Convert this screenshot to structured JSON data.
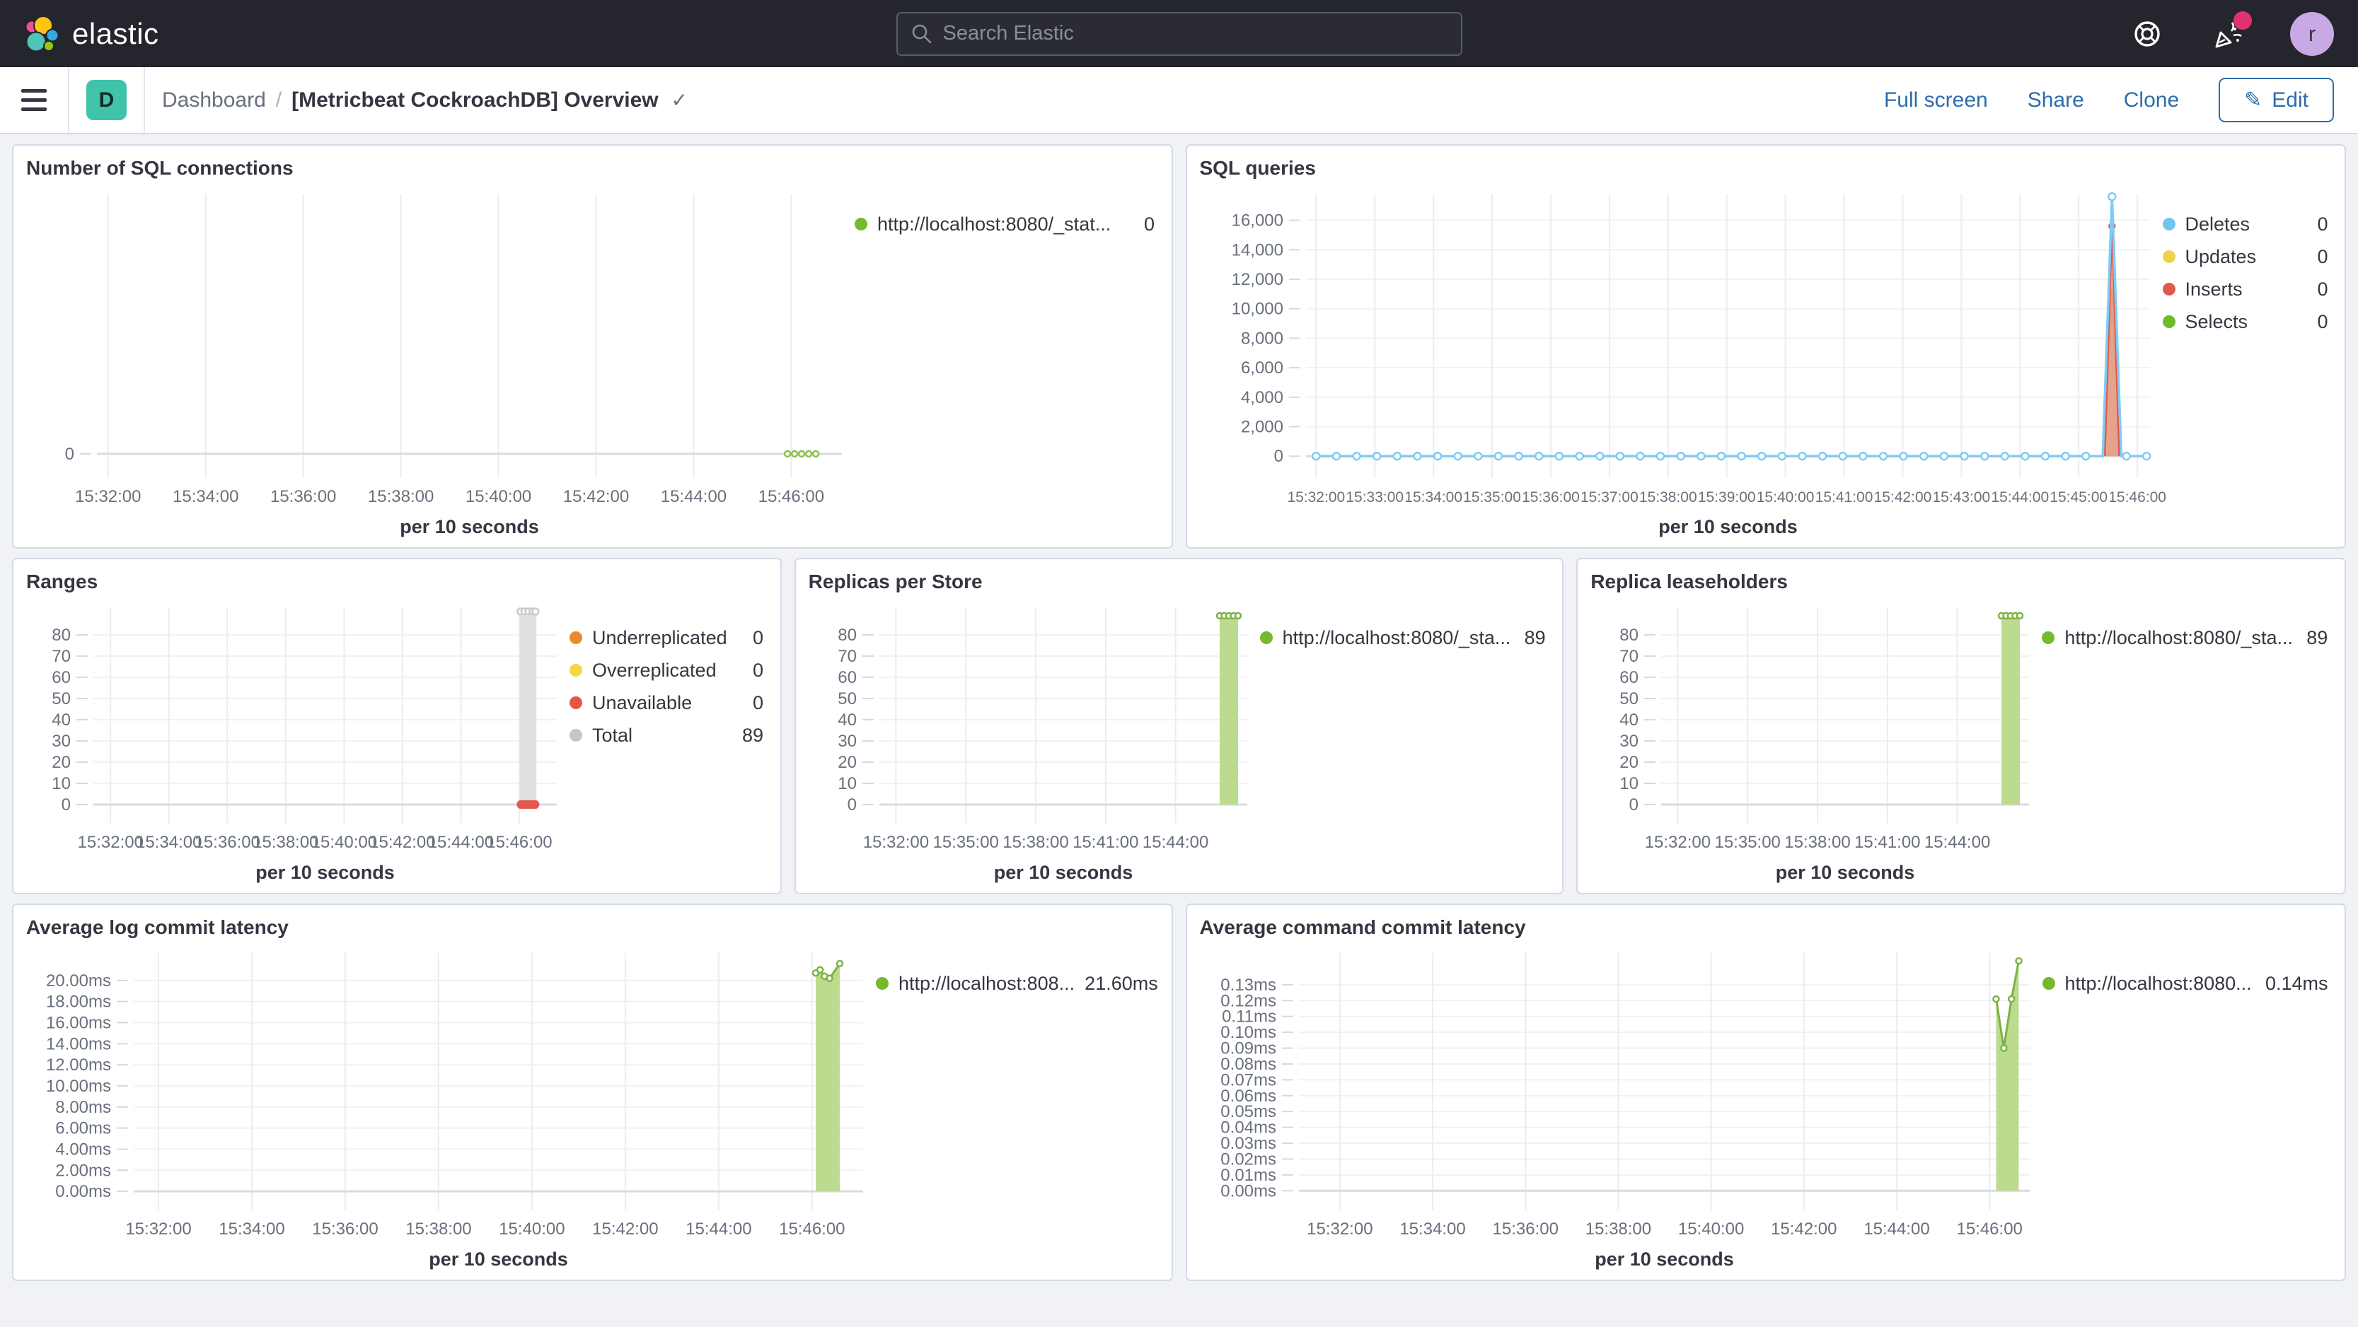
{
  "header": {
    "brand": "elastic",
    "search_placeholder": "Search Elastic",
    "avatar_initial": "r"
  },
  "toolbar": {
    "space_badge": "D",
    "breadcrumb_root": "Dashboard",
    "breadcrumb_sep": "/",
    "title": "[Metricbeat CockroachDB] Overview",
    "title_check": "✓",
    "actions": {
      "full_screen": "Full screen",
      "share": "Share",
      "clone": "Clone",
      "edit": "Edit",
      "edit_icon": "✎"
    }
  },
  "panels": [
    {
      "title": "Number of SQL connections",
      "legend": [
        {
          "label": "http://localhost:8080/_stat...",
          "value": "0",
          "color": "#77b92d"
        }
      ],
      "chart_data": {
        "type": "line",
        "x_axis_title": "per 10 seconds",
        "x_ticks": [
          "15:32:00",
          "15:34:00",
          "15:36:00",
          "15:38:00",
          "15:40:00",
          "15:42:00",
          "15:44:00",
          "15:46:00"
        ],
        "y_ticks": [
          {
            "v": 0,
            "label": "0"
          }
        ],
        "ylim": [
          -0.6,
          10
        ],
        "h_grid": false,
        "layout": {
          "margin_left": 100,
          "x_first": 0.015,
          "x_step": 0.131,
          "x_font": 24
        },
        "series": [
          {
            "name": "http://localhost:8080/_stat...",
            "stroke": "#8cbf4d",
            "width": 3,
            "points": [
              [
                0.927,
                0
              ],
              [
                0.965,
                0
              ]
            ],
            "marker_step": 0.0095,
            "marker_r": 4
          }
        ]
      }
    },
    {
      "title": "SQL queries",
      "legend": [
        {
          "label": "Deletes",
          "value": "0",
          "color": "#73c5f0"
        },
        {
          "label": "Updates",
          "value": "0",
          "color": "#efd24b"
        },
        {
          "label": "Inserts",
          "value": "0",
          "color": "#df5a4b"
        },
        {
          "label": "Selects",
          "value": "0",
          "color": "#6fbb2a"
        }
      ],
      "chart_data": {
        "type": "line",
        "x_axis_title": "per 10 seconds",
        "x_ticks": [
          "15:32:00",
          "15:33:00",
          "15:34:00",
          "15:35:00",
          "15:36:00",
          "15:37:00",
          "15:38:00",
          "15:39:00",
          "15:40:00",
          "15:41:00",
          "15:42:00",
          "15:43:00",
          "15:44:00",
          "15:45:00",
          "15:46:00"
        ],
        "y_ticks": [
          {
            "v": 0,
            "label": "0"
          },
          {
            "v": 2000,
            "label": "2,000"
          },
          {
            "v": 4000,
            "label": "4,000"
          },
          {
            "v": 6000,
            "label": "6,000"
          },
          {
            "v": 8000,
            "label": "8,000"
          },
          {
            "v": 10000,
            "label": "10,000"
          },
          {
            "v": 12000,
            "label": "12,000"
          },
          {
            "v": 14000,
            "label": "14,000"
          },
          {
            "v": 16000,
            "label": "16,000"
          }
        ],
        "ylim": [
          -900,
          17800
        ],
        "h_grid": true,
        "layout": {
          "margin_left": 150,
          "x_first": 0.012,
          "x_step": 0.0695,
          "x_font": 21
        },
        "series": [
          {
            "name": "Selects",
            "stroke": "#7cb342",
            "width": 3,
            "fill": "#a6d06f",
            "fill_opacity": 0.9,
            "points": [
              [
                0.945,
                0
              ],
              [
                0.955,
                11500
              ],
              [
                0.965,
                0
              ]
            ],
            "markers": [
              [
                0.955,
                11500
              ]
            ],
            "marker_r": 5
          },
          {
            "name": "Inserts",
            "stroke": "#e0594c",
            "width": 2.5,
            "fill": "#ee9a8d",
            "fill_opacity": 0.85,
            "points": [
              [
                0.9465,
                0
              ],
              [
                0.955,
                15600
              ],
              [
                0.9635,
                0
              ]
            ],
            "markers": [
              [
                0.955,
                15600
              ]
            ],
            "marker_r": 4
          },
          {
            "name": "Deletes",
            "stroke": "#7fcbf7",
            "width": 3.5,
            "points": [
              [
                0.012,
                0
              ],
              [
                0.944,
                0
              ],
              [
                0.955,
                17600
              ],
              [
                0.966,
                0
              ],
              [
                0.999,
                0
              ]
            ],
            "marker_step": 0.024,
            "skip_steep_markers": true,
            "markers": [
              [
                0.955,
                17600
              ]
            ],
            "marker_r": 5
          }
        ]
      }
    },
    {
      "title": "Ranges",
      "legend": [
        {
          "label": "Underreplicated",
          "value": "0",
          "color": "#ea8a2d"
        },
        {
          "label": "Overreplicated",
          "value": "0",
          "color": "#f0d943"
        },
        {
          "label": "Unavailable",
          "value": "0",
          "color": "#e25749"
        },
        {
          "label": "Total",
          "value": "89",
          "color": "#c6c6c6"
        }
      ],
      "chart_data": {
        "type": "bar",
        "x_axis_title": "per 10 seconds",
        "x_ticks": [
          "15:32:00",
          "15:34:00",
          "15:36:00",
          "15:38:00",
          "15:40:00",
          "15:42:00",
          "15:44:00",
          "15:46:00"
        ],
        "y_ticks": [
          {
            "v": 0,
            "label": "0"
          },
          {
            "v": 10,
            "label": "10"
          },
          {
            "v": 20,
            "label": "20"
          },
          {
            "v": 30,
            "label": "30"
          },
          {
            "v": 40,
            "label": "40"
          },
          {
            "v": 50,
            "label": "50"
          },
          {
            "v": 60,
            "label": "60"
          },
          {
            "v": 70,
            "label": "70"
          },
          {
            "v": 80,
            "label": "80"
          }
        ],
        "ylim": [
          -5,
          93
        ],
        "h_grid": true,
        "layout": {
          "margin_left": 95,
          "x_first": 0.037,
          "x_step": 0.126,
          "x_font": 24
        },
        "series": [
          {
            "name": "Total",
            "fill": "#dbdbdb",
            "fill_opacity": 0.9,
            "points": [
              [
                0.92,
                0
              ],
              [
                0.92,
                89
              ],
              [
                0.956,
                89
              ],
              [
                0.956,
                0
              ]
            ],
            "markers": [
              [
                0.922,
                91
              ],
              [
                0.9305,
                91
              ],
              [
                0.939,
                91
              ],
              [
                0.9475,
                91
              ],
              [
                0.954,
                91
              ]
            ],
            "marker_r": 4.5,
            "marker_stroke": "#c9c9c9"
          },
          {
            "name": "Unavailable",
            "markers": [
              [
                0.923,
                0
              ],
              [
                0.9305,
                0
              ],
              [
                0.938,
                0
              ],
              [
                0.9455,
                0
              ],
              [
                0.953,
                0
              ]
            ],
            "marker_r": 5,
            "marker_fill": "#e0594c",
            "marker_stroke": "#e0594c"
          }
        ]
      }
    },
    {
      "title": "Replicas per Store",
      "legend": [
        {
          "label": "http://localhost:8080/_sta...",
          "value": "89",
          "color": "#77b92d"
        }
      ],
      "chart_data": {
        "type": "bar",
        "x_axis_title": "per 10 seconds",
        "x_ticks": [
          "15:32:00",
          "15:35:00",
          "15:38:00",
          "15:41:00",
          "15:44:00"
        ],
        "y_ticks": [
          {
            "v": 0,
            "label": "0"
          },
          {
            "v": 10,
            "label": "10"
          },
          {
            "v": 20,
            "label": "20"
          },
          {
            "v": 30,
            "label": "30"
          },
          {
            "v": 40,
            "label": "40"
          },
          {
            "v": 50,
            "label": "50"
          },
          {
            "v": 60,
            "label": "60"
          },
          {
            "v": 70,
            "label": "70"
          },
          {
            "v": 80,
            "label": "80"
          }
        ],
        "ylim": [
          -5,
          93
        ],
        "h_grid": true,
        "layout": {
          "margin_left": 100,
          "x_first": 0.045,
          "x_step": 0.19,
          "x_font": 24
        },
        "series": [
          {
            "name": "http://localhost:8080/_sta...",
            "fill": "#bcdb8f",
            "fill_opacity": 1,
            "points": [
              [
                0.925,
                0
              ],
              [
                0.925,
                89
              ],
              [
                0.975,
                89
              ],
              [
                0.975,
                0
              ]
            ]
          },
          {
            "stroke": "#7cb342",
            "width": 3,
            "points": [
              [
                0.925,
                89
              ],
              [
                0.975,
                89
              ]
            ],
            "marker_step": 0.0125,
            "marker_r": 4
          }
        ]
      }
    },
    {
      "title": "Replica leaseholders",
      "legend": [
        {
          "label": "http://localhost:8080/_sta...",
          "value": "89",
          "color": "#77b92d"
        }
      ],
      "chart_data": {
        "type": "bar",
        "x_axis_title": "per 10 seconds",
        "x_ticks": [
          "15:32:00",
          "15:35:00",
          "15:38:00",
          "15:41:00",
          "15:44:00"
        ],
        "y_ticks": [
          {
            "v": 0,
            "label": "0"
          },
          {
            "v": 10,
            "label": "10"
          },
          {
            "v": 20,
            "label": "20"
          },
          {
            "v": 30,
            "label": "30"
          },
          {
            "v": 40,
            "label": "40"
          },
          {
            "v": 50,
            "label": "50"
          },
          {
            "v": 60,
            "label": "60"
          },
          {
            "v": 70,
            "label": "70"
          },
          {
            "v": 80,
            "label": "80"
          }
        ],
        "ylim": [
          -5,
          93
        ],
        "h_grid": true,
        "layout": {
          "margin_left": 100,
          "x_first": 0.045,
          "x_step": 0.19,
          "x_font": 24
        },
        "series": [
          {
            "name": "http://localhost:8080/_sta...",
            "fill": "#bcdb8f",
            "fill_opacity": 1,
            "points": [
              [
                0.925,
                0
              ],
              [
                0.925,
                89
              ],
              [
                0.975,
                89
              ],
              [
                0.975,
                0
              ]
            ]
          },
          {
            "stroke": "#7cb342",
            "width": 3,
            "points": [
              [
                0.925,
                89
              ],
              [
                0.975,
                89
              ]
            ],
            "marker_step": 0.0125,
            "marker_r": 4
          }
        ]
      }
    },
    {
      "title": "Average log commit latency",
      "legend": [
        {
          "label": "http://localhost:808...",
          "value": "21.60ms",
          "color": "#77b92d"
        }
      ],
      "chart_data": {
        "type": "area",
        "x_axis_title": "per 10 seconds",
        "x_ticks": [
          "15:32:00",
          "15:34:00",
          "15:36:00",
          "15:38:00",
          "15:40:00",
          "15:42:00",
          "15:44:00",
          "15:46:00"
        ],
        "y_ticks": [
          {
            "v": 0,
            "label": "0.00ms"
          },
          {
            "v": 2,
            "label": "2.00ms"
          },
          {
            "v": 4,
            "label": "4.00ms"
          },
          {
            "v": 6,
            "label": "6.00ms"
          },
          {
            "v": 8,
            "label": "8.00ms"
          },
          {
            "v": 10,
            "label": "10.00ms"
          },
          {
            "v": 12,
            "label": "12.00ms"
          },
          {
            "v": 14,
            "label": "14.00ms"
          },
          {
            "v": 16,
            "label": "16.00ms"
          },
          {
            "v": 18,
            "label": "18.00ms"
          },
          {
            "v": 20,
            "label": "20.00ms"
          }
        ],
        "ylim": [
          -1,
          22.6
        ],
        "h_grid": true,
        "layout": {
          "margin_left": 152,
          "x_first": 0.034,
          "x_step": 0.128,
          "x_font": 24
        },
        "series": [
          {
            "name": "http://localhost:808...",
            "fill": "#bcdb8f",
            "fill_opacity": 1,
            "points": [
              [
                0.935,
                0
              ],
              [
                0.935,
                20.7
              ],
              [
                0.941,
                21.0
              ],
              [
                0.947,
                20.4
              ],
              [
                0.954,
                20.2
              ],
              [
                0.968,
                21.6
              ],
              [
                0.968,
                0
              ]
            ]
          },
          {
            "stroke": "#7cb342",
            "width": 3,
            "points": [
              [
                0.935,
                20.7
              ],
              [
                0.941,
                21.0
              ],
              [
                0.947,
                20.4
              ],
              [
                0.954,
                20.2
              ],
              [
                0.968,
                21.6
              ]
            ],
            "markers_at_points": true,
            "marker_r": 4
          }
        ]
      }
    },
    {
      "title": "Average command commit latency",
      "legend": [
        {
          "label": "http://localhost:8080...",
          "value": "0.14ms",
          "color": "#77b92d"
        }
      ],
      "chart_data": {
        "type": "area",
        "x_axis_title": "per 10 seconds",
        "x_ticks": [
          "15:32:00",
          "15:34:00",
          "15:36:00",
          "15:38:00",
          "15:40:00",
          "15:42:00",
          "15:44:00",
          "15:46:00"
        ],
        "y_ticks": [
          {
            "v": 0,
            "label": "0.00ms"
          },
          {
            "v": 0.01,
            "label": "0.01ms"
          },
          {
            "v": 0.02,
            "label": "0.02ms"
          },
          {
            "v": 0.03,
            "label": "0.03ms"
          },
          {
            "v": 0.04,
            "label": "0.04ms"
          },
          {
            "v": 0.05,
            "label": "0.05ms"
          },
          {
            "v": 0.06,
            "label": "0.06ms"
          },
          {
            "v": 0.07,
            "label": "0.07ms"
          },
          {
            "v": 0.08,
            "label": "0.08ms"
          },
          {
            "v": 0.09,
            "label": "0.09ms"
          },
          {
            "v": 0.1,
            "label": "0.10ms"
          },
          {
            "v": 0.11,
            "label": "0.11ms"
          },
          {
            "v": 0.12,
            "label": "0.12ms"
          },
          {
            "v": 0.13,
            "label": "0.13ms"
          }
        ],
        "ylim": [
          -0.007,
          0.15
        ],
        "h_grid": true,
        "layout": {
          "margin_left": 140,
          "x_first": 0.056,
          "x_step": 0.127,
          "x_font": 24
        },
        "series": [
          {
            "name": "http://localhost:8080...",
            "fill": "#bcdb8f",
            "fill_opacity": 1,
            "points": [
              [
                0.954,
                0
              ],
              [
                0.954,
                0.121
              ],
              [
                0.9645,
                0.09
              ],
              [
                0.975,
                0.121
              ],
              [
                0.985,
                0.145
              ],
              [
                0.985,
                0
              ]
            ]
          },
          {
            "stroke": "#7cb342",
            "width": 3,
            "points": [
              [
                0.954,
                0.121
              ],
              [
                0.9645,
                0.09
              ],
              [
                0.975,
                0.121
              ],
              [
                0.985,
                0.145
              ]
            ],
            "markers_at_points": true,
            "marker_r": 4
          }
        ]
      }
    }
  ]
}
